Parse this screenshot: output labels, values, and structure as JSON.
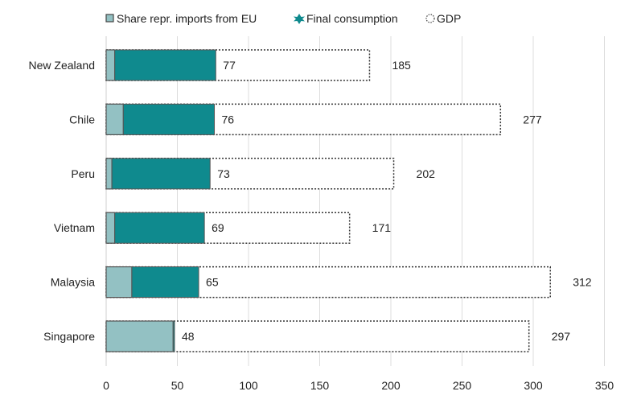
{
  "chart_data": {
    "type": "bar",
    "orientation": "horizontal",
    "categories": [
      "New Zealand",
      "Chile",
      "Peru",
      "Vietnam",
      "Malaysia",
      "Singapore"
    ],
    "series": [
      {
        "name": "Share repr. imports from EU",
        "values": [
          6,
          12,
          4,
          6,
          18,
          47
        ],
        "color": "#93c1c3",
        "stroke": "#555555"
      },
      {
        "name": "Final consumption",
        "values": [
          77,
          76,
          73,
          69,
          65,
          48
        ],
        "color": "#0f8a8e",
        "stroke": "#555555"
      },
      {
        "name": "GDP",
        "values": [
          185,
          277,
          202,
          171,
          312,
          297
        ],
        "color": "#ffffff",
        "stroke": "#333333",
        "dashed": true
      }
    ],
    "data_labels": {
      "final_consumption": [
        "77",
        "76",
        "73",
        "69",
        "65",
        "48"
      ],
      "gdp": [
        "185",
        "277",
        "202",
        "171",
        "312",
        "297"
      ]
    },
    "xlim": [
      0,
      350
    ],
    "xticks": [
      0,
      50,
      100,
      150,
      200,
      250,
      300,
      350
    ],
    "xtick_labels": [
      "0",
      "50",
      "100",
      "150",
      "200",
      "250",
      "300",
      "350"
    ],
    "legend_position": "top-left",
    "grid": "vertical",
    "title": "",
    "xlabel": "",
    "ylabel": ""
  }
}
